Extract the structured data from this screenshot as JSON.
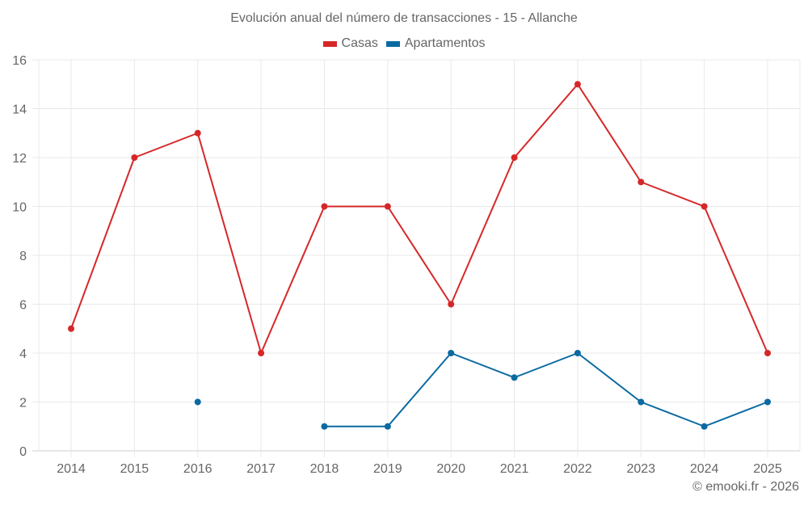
{
  "chart_data": {
    "type": "line",
    "title": "Evolución anual del número de transacciones - 15 - Allanche",
    "xlabel": "",
    "ylabel": "",
    "categories": [
      "2014",
      "2015",
      "2016",
      "2017",
      "2018",
      "2019",
      "2020",
      "2021",
      "2022",
      "2023",
      "2024",
      "2025"
    ],
    "series": [
      {
        "name": "Casas",
        "color": "#d62728",
        "values": [
          5,
          12,
          13,
          4,
          10,
          10,
          6,
          12,
          15,
          11,
          10,
          4
        ]
      },
      {
        "name": "Apartamentos",
        "color": "#0a6aa1",
        "values": [
          null,
          null,
          2,
          null,
          1,
          1,
          4,
          3,
          4,
          2,
          1,
          2
        ]
      }
    ],
    "ylim": [
      0,
      16
    ],
    "yticks": [
      0,
      2,
      4,
      6,
      8,
      10,
      12,
      14,
      16
    ],
    "grid": true,
    "legend_position": "top"
  },
  "legend": {
    "items": [
      {
        "label": "Casas",
        "color": "#d62728"
      },
      {
        "label": "Apartamentos",
        "color": "#0a6aa1"
      }
    ]
  },
  "credit": "© emooki.fr - 2026"
}
